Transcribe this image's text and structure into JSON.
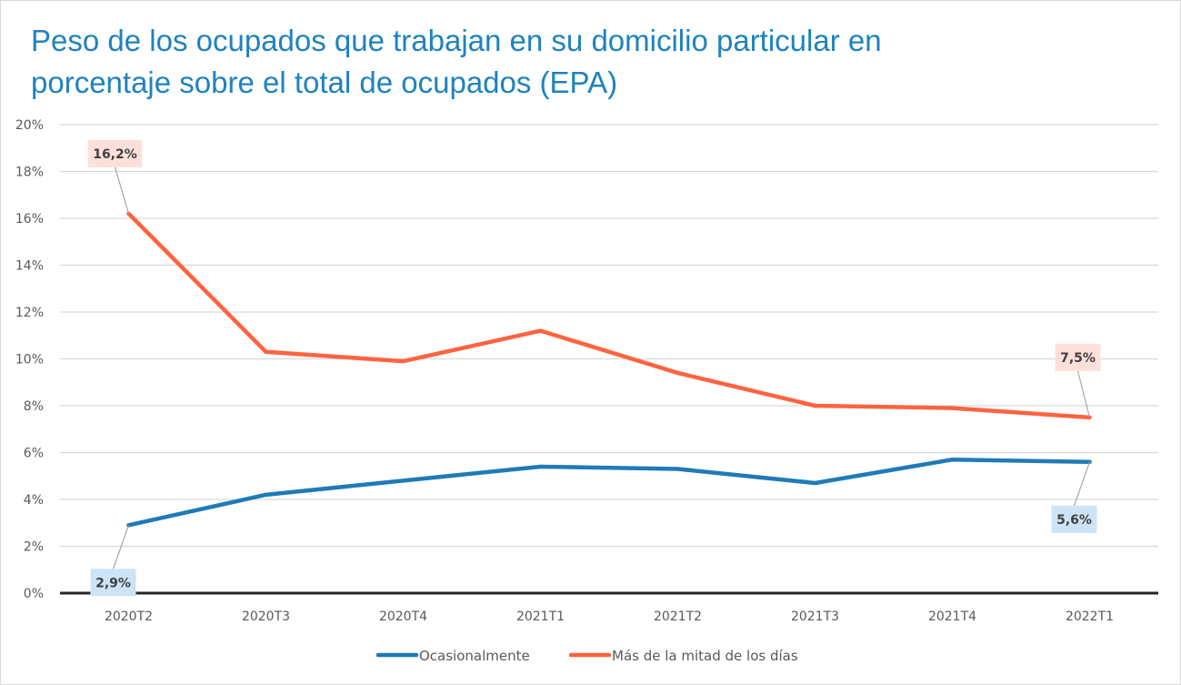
{
  "chart_data": {
    "type": "line",
    "title": "Peso de los ocupados que trabajan en su domicilio particular en porcentaje sobre el total de ocupados (EPA)",
    "title_lines": [
      "Peso de los ocupados que trabajan en su domicilio particular en",
      "porcentaje sobre el total de ocupados (EPA)"
    ],
    "xlabel": "",
    "ylabel": "",
    "categories": [
      "2020T2",
      "2020T3",
      "2020T4",
      "2021T1",
      "2021T2",
      "2021T3",
      "2021T4",
      "2022T1"
    ],
    "ylim": [
      0,
      20
    ],
    "yticks": [
      0,
      2,
      4,
      6,
      8,
      10,
      12,
      14,
      16,
      18,
      20
    ],
    "ytick_labels": [
      "0%",
      "2%",
      "4%",
      "6%",
      "8%",
      "10%",
      "12%",
      "14%",
      "16%",
      "18%",
      "20%"
    ],
    "grid": true,
    "legend_position": "bottom",
    "series": [
      {
        "name": "Ocasionalmente",
        "color": "#1f7bb6",
        "label_bg": "#cce4f6",
        "values": [
          2.9,
          4.2,
          4.8,
          5.4,
          5.3,
          4.7,
          5.7,
          5.6
        ],
        "data_labels": [
          {
            "index": 0,
            "text": "2,9%",
            "position": "below-left"
          },
          {
            "index": 7,
            "text": "5,6%",
            "position": "below-left"
          }
        ]
      },
      {
        "name": "Más de la mitad de los días",
        "color": "#ff6340",
        "label_bg": "#fde0d9",
        "values": [
          16.2,
          10.3,
          9.9,
          11.2,
          9.4,
          8.0,
          7.9,
          7.5
        ],
        "data_labels": [
          {
            "index": 0,
            "text": "16,2%",
            "position": "above-left"
          },
          {
            "index": 7,
            "text": "7,5%",
            "position": "above"
          }
        ]
      }
    ]
  }
}
